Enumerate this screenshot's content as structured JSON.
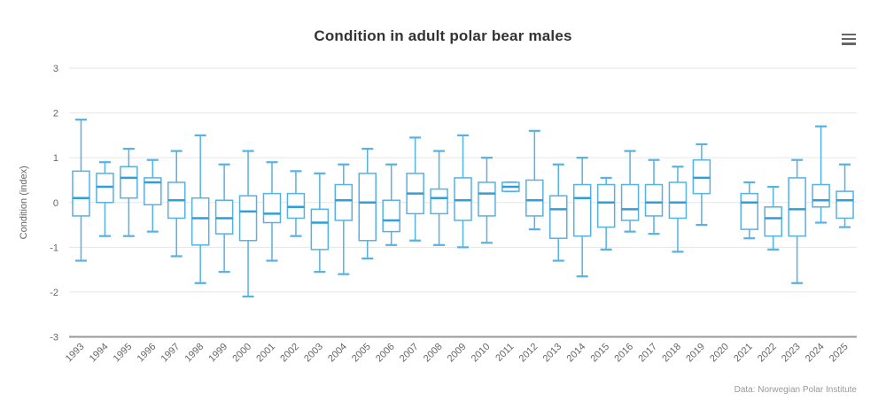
{
  "header": {
    "title": "Condition in adult polar bear males"
  },
  "menu": {
    "icon": "hamburger-menu-icon"
  },
  "credits": {
    "text": "Data: Norwegian Polar Institute"
  },
  "colors": {
    "background": "#ffffff",
    "box_stroke": "#56b1e4",
    "box_fill": "#ffffff",
    "median": "#2e9fd8",
    "grid": "#e6e6e6",
    "axis_line": "#999999",
    "tick_label": "#666666",
    "axis_title": "#666666",
    "title": "#333333",
    "credits": "#999999"
  },
  "chart_data": {
    "type": "boxplot",
    "title": "Condition in adult polar bear males",
    "xlabel": "",
    "ylabel": "Condition (index)",
    "ylim": [
      -3,
      3
    ],
    "yticks": [
      3,
      2,
      1,
      0,
      -1,
      -2,
      -3
    ],
    "grid": true,
    "legend": "none",
    "categories": [
      "1993",
      "1994",
      "1995",
      "1996",
      "1997",
      "1998",
      "1999",
      "2000",
      "2001",
      "2002",
      "2003",
      "2004",
      "2005",
      "2006",
      "2007",
      "2008",
      "2009",
      "2010",
      "2011",
      "2012",
      "2013",
      "2014",
      "2015",
      "2016",
      "2017",
      "2018",
      "2019",
      "2020",
      "2021",
      "2022",
      "2023",
      "2024",
      "2025"
    ],
    "value_format": "[low, q1, median, q3, high]",
    "series": [
      {
        "name": "Condition",
        "values": [
          [
            -1.3,
            -0.3,
            0.1,
            0.7,
            1.85
          ],
          [
            -0.75,
            0.0,
            0.35,
            0.65,
            0.9
          ],
          [
            -0.75,
            0.1,
            0.55,
            0.8,
            1.2
          ],
          [
            -0.65,
            -0.05,
            0.45,
            0.55,
            0.95
          ],
          [
            -1.2,
            -0.35,
            0.05,
            0.45,
            1.15
          ],
          [
            -1.8,
            -0.95,
            -0.35,
            0.1,
            1.5
          ],
          [
            -1.55,
            -0.7,
            -0.35,
            0.05,
            0.85
          ],
          [
            -2.1,
            -0.85,
            -0.2,
            0.15,
            1.15
          ],
          [
            -1.3,
            -0.45,
            -0.25,
            0.2,
            0.9
          ],
          [
            -0.75,
            -0.35,
            -0.1,
            0.2,
            0.7
          ],
          [
            -1.55,
            -1.05,
            -0.45,
            -0.15,
            0.65
          ],
          [
            -1.6,
            -0.4,
            0.05,
            0.4,
            0.85
          ],
          [
            -1.25,
            -0.85,
            0.0,
            0.65,
            1.2
          ],
          [
            -0.95,
            -0.65,
            -0.4,
            0.05,
            0.85
          ],
          [
            -0.85,
            -0.25,
            0.2,
            0.65,
            1.45
          ],
          [
            -0.95,
            -0.25,
            0.1,
            0.3,
            1.15
          ],
          [
            -1.0,
            -0.4,
            0.05,
            0.55,
            1.5
          ],
          [
            -0.9,
            -0.3,
            0.2,
            0.45,
            1.0
          ],
          [
            0.25,
            0.25,
            0.35,
            0.45,
            0.45
          ],
          [
            -0.6,
            -0.3,
            0.05,
            0.5,
            1.6
          ],
          [
            -1.3,
            -0.8,
            -0.15,
            0.15,
            0.85
          ],
          [
            -1.65,
            -0.75,
            0.1,
            0.4,
            1.0
          ],
          [
            -1.05,
            -0.55,
            0.0,
            0.4,
            0.55
          ],
          [
            -0.65,
            -0.4,
            -0.15,
            0.4,
            1.15
          ],
          [
            -0.7,
            -0.3,
            0.0,
            0.4,
            0.95
          ],
          [
            -1.1,
            -0.35,
            0.0,
            0.45,
            0.8
          ],
          [
            -0.5,
            0.2,
            0.55,
            0.95,
            1.3
          ],
          null,
          [
            -0.8,
            -0.6,
            0.0,
            0.2,
            0.45
          ],
          [
            -1.05,
            -0.75,
            -0.35,
            -0.1,
            0.35
          ],
          [
            -1.8,
            -0.75,
            -0.15,
            0.55,
            0.95
          ],
          [
            -0.45,
            -0.1,
            0.05,
            0.4,
            1.7
          ],
          [
            -0.55,
            -0.35,
            0.05,
            0.25,
            0.85
          ]
        ]
      }
    ]
  }
}
